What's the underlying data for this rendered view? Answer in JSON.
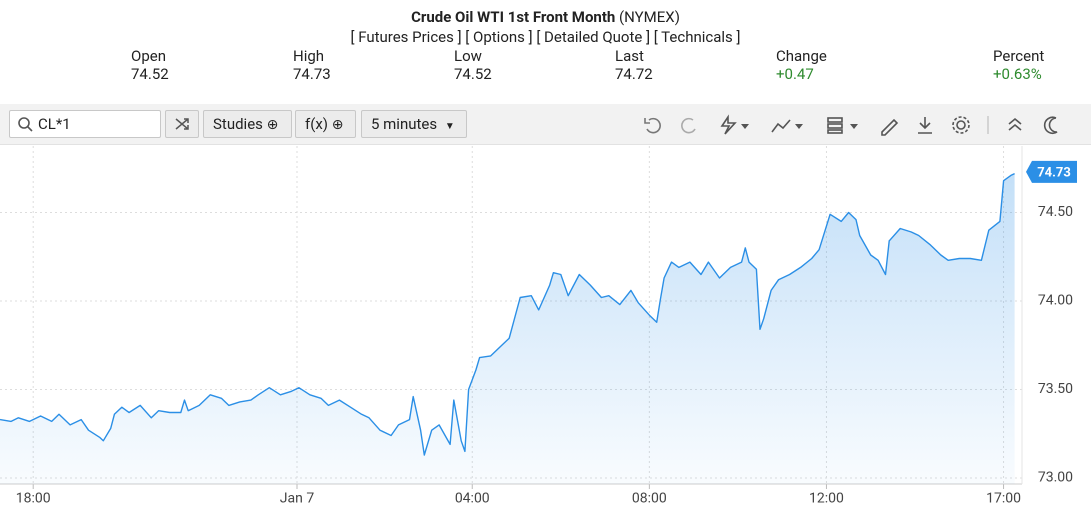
{
  "header": {
    "title": "Crude Oil WTI 1st Front Month",
    "exchange": "(NYMEX)",
    "links": [
      "Futures Prices",
      "Options",
      "Detailed Quote",
      "Technicals"
    ]
  },
  "quote": {
    "fields": [
      {
        "label": "Open",
        "value": "74.52"
      },
      {
        "label": "High",
        "value": "74.73"
      },
      {
        "label": "Low",
        "value": "74.52"
      },
      {
        "label": "Last",
        "value": "74.72"
      },
      {
        "label": "Change",
        "value": "+0.47"
      },
      {
        "label": "Percent",
        "value": "+0.63%"
      }
    ]
  },
  "toolbar": {
    "symbol": "CL*1",
    "studies": "Studies",
    "fx": "f(x)",
    "interval": "5 minutes"
  },
  "chart_data": {
    "type": "line",
    "color": "#2b8fe6",
    "x": [
      0,
      3,
      5,
      8,
      11,
      14,
      16,
      19,
      22,
      24,
      27,
      28,
      30,
      31,
      33,
      35,
      38,
      41,
      43,
      46,
      49,
      50,
      51,
      54,
      57,
      60,
      62,
      65,
      68,
      70,
      73,
      76,
      79,
      81,
      84,
      87,
      89,
      92,
      95,
      98,
      100,
      103,
      106,
      108,
      111,
      112,
      114,
      115,
      117,
      119,
      122,
      123,
      125,
      126,
      127,
      129,
      130,
      133,
      136,
      138,
      141,
      144,
      146,
      149,
      150,
      152,
      154,
      157,
      160,
      163,
      165,
      168,
      171,
      173,
      176,
      178,
      179,
      180,
      182,
      184,
      187,
      190,
      192,
      195,
      198,
      201,
      202,
      203,
      205,
      206,
      207,
      209,
      211,
      214,
      217,
      220,
      222,
      225,
      228,
      230,
      232,
      233,
      236,
      238,
      240,
      241,
      244,
      247,
      249,
      252,
      255,
      257,
      260,
      263,
      266,
      268,
      271,
      272,
      274,
      275
    ],
    "values": [
      73.33,
      73.32,
      73.34,
      73.32,
      73.35,
      73.32,
      73.36,
      73.3,
      73.33,
      73.27,
      73.23,
      73.21,
      73.28,
      73.36,
      73.4,
      73.37,
      73.41,
      73.34,
      73.38,
      73.37,
      73.37,
      73.44,
      73.38,
      73.41,
      73.47,
      73.45,
      73.41,
      73.43,
      73.44,
      73.47,
      73.51,
      73.47,
      73.49,
      73.51,
      73.47,
      73.45,
      73.41,
      73.44,
      73.4,
      73.36,
      73.34,
      73.27,
      73.24,
      73.3,
      73.33,
      73.46,
      73.27,
      73.13,
      73.27,
      73.3,
      73.19,
      73.44,
      73.21,
      73.15,
      73.5,
      73.61,
      73.68,
      73.69,
      73.75,
      73.79,
      74.02,
      74.03,
      73.95,
      74.09,
      74.16,
      74.15,
      74.03,
      74.15,
      74.09,
      74.02,
      74.03,
      73.98,
      74.06,
      73.99,
      73.92,
      73.88,
      74.01,
      74.13,
      74.22,
      74.19,
      74.22,
      74.15,
      74.22,
      74.13,
      74.19,
      74.22,
      74.3,
      74.22,
      74.18,
      73.84,
      73.9,
      74.06,
      74.12,
      74.15,
      74.19,
      74.24,
      74.29,
      74.49,
      74.45,
      74.5,
      74.46,
      74.37,
      74.26,
      74.23,
      74.15,
      74.34,
      74.41,
      74.39,
      74.37,
      74.32,
      74.26,
      74.23,
      74.24,
      74.24,
      74.23,
      74.4,
      74.45,
      74.68,
      74.71,
      74.72
    ],
    "xlim": [
      0,
      277
    ],
    "ylim": [
      72.966,
      74.876
    ],
    "xticks": [
      {
        "value": 9,
        "label": "18:00"
      },
      {
        "value": 80.5,
        "label": "Jan 7"
      },
      {
        "value": 128,
        "label": "04:00"
      },
      {
        "value": 176,
        "label": "08:00"
      },
      {
        "value": 224,
        "label": "12:00"
      },
      {
        "value": 272,
        "label": "17:00"
      }
    ],
    "yticks": [
      {
        "value": 73,
        "label": "73.00"
      },
      {
        "value": 73.5,
        "label": "73.50"
      },
      {
        "value": 74,
        "label": "74.00"
      },
      {
        "value": 74.5,
        "label": "74.50"
      }
    ],
    "price_tag": {
      "value": 74.73,
      "label": "74.73"
    },
    "grid": true
  }
}
